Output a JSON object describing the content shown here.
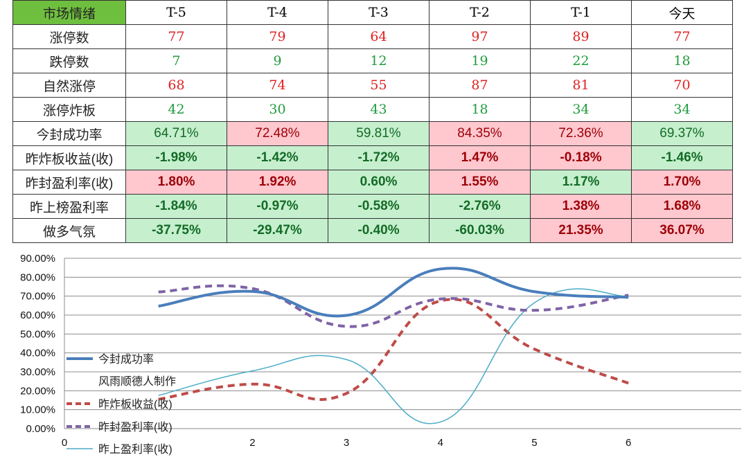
{
  "table": {
    "title": "市场情绪",
    "columns": [
      "T-5",
      "T-4",
      "T-3",
      "T-2",
      "T-1",
      "今天"
    ],
    "rows": [
      {
        "label": "涨停数",
        "values": [
          "77",
          "79",
          "64",
          "97",
          "89",
          "77"
        ],
        "style": "red"
      },
      {
        "label": "跌停数",
        "values": [
          "7",
          "9",
          "12",
          "19",
          "22",
          "18"
        ],
        "style": "green"
      },
      {
        "label": "自然涨停",
        "values": [
          "68",
          "74",
          "55",
          "87",
          "81",
          "70"
        ],
        "style": "red"
      },
      {
        "label": "涨停炸板",
        "values": [
          "42",
          "30",
          "43",
          "18",
          "34",
          "34"
        ],
        "style": "green"
      },
      {
        "label": "今封成功率",
        "values": [
          "64.71%",
          "72.48%",
          "59.81%",
          "84.35%",
          "72.36%",
          "69.37%"
        ],
        "bg": [
          "g",
          "r",
          "g",
          "r",
          "r",
          "g"
        ],
        "bold": false
      },
      {
        "label": "昨炸板收益(收)",
        "values": [
          "-1.98%",
          "-1.42%",
          "-1.72%",
          "1.47%",
          "-0.18%",
          "-1.46%"
        ],
        "bg": [
          "g",
          "g",
          "g",
          "r",
          "r",
          "g"
        ],
        "bold": true
      },
      {
        "label": "昨封盈利率(收)",
        "values": [
          "1.80%",
          "1.92%",
          "0.60%",
          "1.55%",
          "1.17%",
          "1.70%"
        ],
        "bg": [
          "r",
          "r",
          "g",
          "r",
          "g",
          "r"
        ],
        "bold": true
      },
      {
        "label": "昨上榜盈利率",
        "values": [
          "-1.84%",
          "-0.97%",
          "-0.58%",
          "-2.76%",
          "1.38%",
          "1.68%"
        ],
        "bg": [
          "g",
          "g",
          "g",
          "g",
          "r",
          "r"
        ],
        "bold": true
      },
      {
        "label": "做多气氛",
        "values": [
          "-37.75%",
          "-29.47%",
          "-0.40%",
          "-60.03%",
          "21.35%",
          "36.07%"
        ],
        "bg": [
          "g",
          "g",
          "g",
          "g",
          "r",
          "r"
        ],
        "bold": true
      }
    ]
  },
  "chart_data": {
    "type": "line",
    "x": [
      1,
      2,
      3,
      4,
      5,
      6
    ],
    "xticks": [
      "0",
      "2",
      "3",
      "4",
      "5",
      "6"
    ],
    "yticks": [
      "0.00%",
      "10.00%",
      "20.00%",
      "30.00%",
      "40.00%",
      "50.00%",
      "60.00%",
      "70.00%",
      "80.00%",
      "90.00%"
    ],
    "ylim": [
      0,
      90
    ],
    "xlim": [
      0,
      7.2
    ],
    "grid": true,
    "legend_placement": "left",
    "annotation": "风雨顺德人制作",
    "series": [
      {
        "name": "今封成功率",
        "values": [
          64.71,
          72.48,
          59.81,
          84.35,
          72.36,
          69.37
        ],
        "color": "#4a7ebb",
        "dash": "",
        "width": 4
      },
      {
        "name": "昨炸板收益(收)",
        "values": [
          15.5,
          23.5,
          18.6,
          67.5,
          42,
          24
        ],
        "color": "#be4b48",
        "dash": "10,7",
        "width": 4
      },
      {
        "name": "昨封盈利率(收)",
        "values": [
          72.2,
          74.0,
          54.0,
          68.5,
          62.5,
          70.5
        ],
        "color": "#7f63a6",
        "dash": "10,7",
        "width": 4
      },
      {
        "name": "昨上盈利率(收)",
        "values": [
          17.5,
          30.5,
          36.5,
          3.5,
          66.5,
          70.0
        ],
        "color": "#4bacc6",
        "dash": "",
        "width": 1.5
      }
    ]
  }
}
